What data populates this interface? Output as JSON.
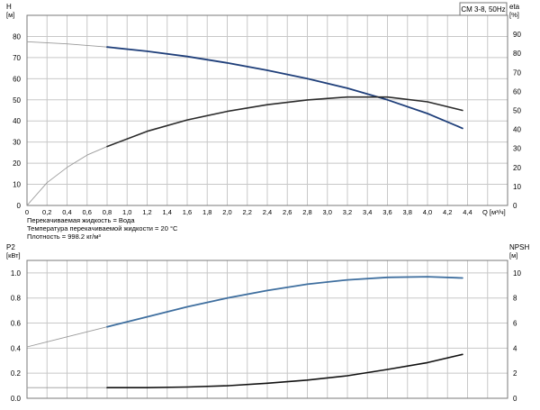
{
  "chart_data": [
    {
      "type": "line",
      "title_box": "CM 3-8, 50Hz",
      "left_axis": {
        "label": "H",
        "unit": "[м]",
        "ylim": [
          0,
          90
        ],
        "ticks": [
          0,
          10,
          20,
          30,
          40,
          50,
          60,
          70,
          80
        ]
      },
      "right_axis": {
        "label": "eta",
        "unit": "[%]",
        "ylim": [
          0,
          100
        ],
        "ticks": [
          0,
          10,
          20,
          30,
          40,
          50,
          60,
          70,
          80,
          90
        ]
      },
      "x_axis": {
        "label": "Q [м³/ч]",
        "xlim": [
          0,
          4.8
        ],
        "ticks": [
          "0",
          "0,2",
          "0,4",
          "0,6",
          "0,8",
          "1,0",
          "1,2",
          "1,4",
          "1,6",
          "1,8",
          "2,0",
          "2,2",
          "2,4",
          "2,6",
          "2,8",
          "3,0",
          "3,2",
          "3,4",
          "3,6",
          "3,8",
          "4,0",
          "4,2",
          "4,4"
        ]
      },
      "notes": [
        "Перекачиваемая жидкость = Вода",
        "Температура перекачиваемой жидкости = 20 °C",
        "Плотность = 998.2 кг/м³"
      ],
      "grid": true,
      "series": [
        {
          "axis": "left",
          "color": "#1f3f7a",
          "extrapolated_x": [
            0,
            0.4,
            0.8
          ],
          "extrapolated_y": [
            77.5,
            76.5,
            75
          ],
          "x": [
            0.8,
            1.2,
            1.6,
            2.0,
            2.4,
            2.8,
            3.2,
            3.6,
            4.0,
            4.35
          ],
          "y": [
            75,
            73,
            70.5,
            67.5,
            64,
            60,
            55.5,
            50,
            43.5,
            36.5
          ]
        },
        {
          "axis": "right",
          "color": "#2b2b2b",
          "extrapolated_x": [
            0,
            0.2,
            0.4,
            0.6,
            0.8
          ],
          "extrapolated_y": [
            0,
            12,
            20,
            26.5,
            31
          ],
          "x": [
            0.8,
            1.2,
            1.6,
            2.0,
            2.4,
            2.8,
            3.2,
            3.6,
            4.0,
            4.35
          ],
          "y": [
            31,
            39,
            45,
            49.5,
            53,
            55.5,
            57,
            57,
            54.5,
            50
          ]
        }
      ]
    },
    {
      "type": "line",
      "left_axis": {
        "label": "P2",
        "unit": "[кВт]",
        "ylim": [
          0,
          1.1
        ],
        "ticks": [
          "0.0",
          "0.2",
          "0.4",
          "0.6",
          "0.8",
          "1.0"
        ]
      },
      "right_axis": {
        "label": "NPSH",
        "unit": "[м]",
        "ylim": [
          0,
          11
        ],
        "ticks": [
          "0",
          "2",
          "4",
          "6",
          "8",
          "10"
        ]
      },
      "x_axis": {
        "xlim": [
          0,
          4.8
        ]
      },
      "grid": true,
      "series": [
        {
          "axis": "left",
          "color": "#3f6f9f",
          "extrapolated_x": [
            0,
            0.4,
            0.8
          ],
          "extrapolated_y": [
            0.41,
            0.49,
            0.57
          ],
          "x": [
            0.8,
            1.2,
            1.6,
            2.0,
            2.4,
            2.8,
            3.2,
            3.6,
            4.0,
            4.35
          ],
          "y": [
            0.57,
            0.65,
            0.73,
            0.8,
            0.86,
            0.91,
            0.945,
            0.965,
            0.97,
            0.96
          ]
        },
        {
          "axis": "right",
          "color": "#111111",
          "extrapolated_x": [
            0,
            0.4,
            0.8
          ],
          "extrapolated_y": [
            0.85,
            0.85,
            0.85
          ],
          "x": [
            0.8,
            1.2,
            1.6,
            2.0,
            2.4,
            2.8,
            3.2,
            3.6,
            4.0,
            4.35
          ],
          "y": [
            0.85,
            0.85,
            0.9,
            1.0,
            1.2,
            1.45,
            1.8,
            2.3,
            2.85,
            3.5
          ]
        }
      ]
    }
  ]
}
